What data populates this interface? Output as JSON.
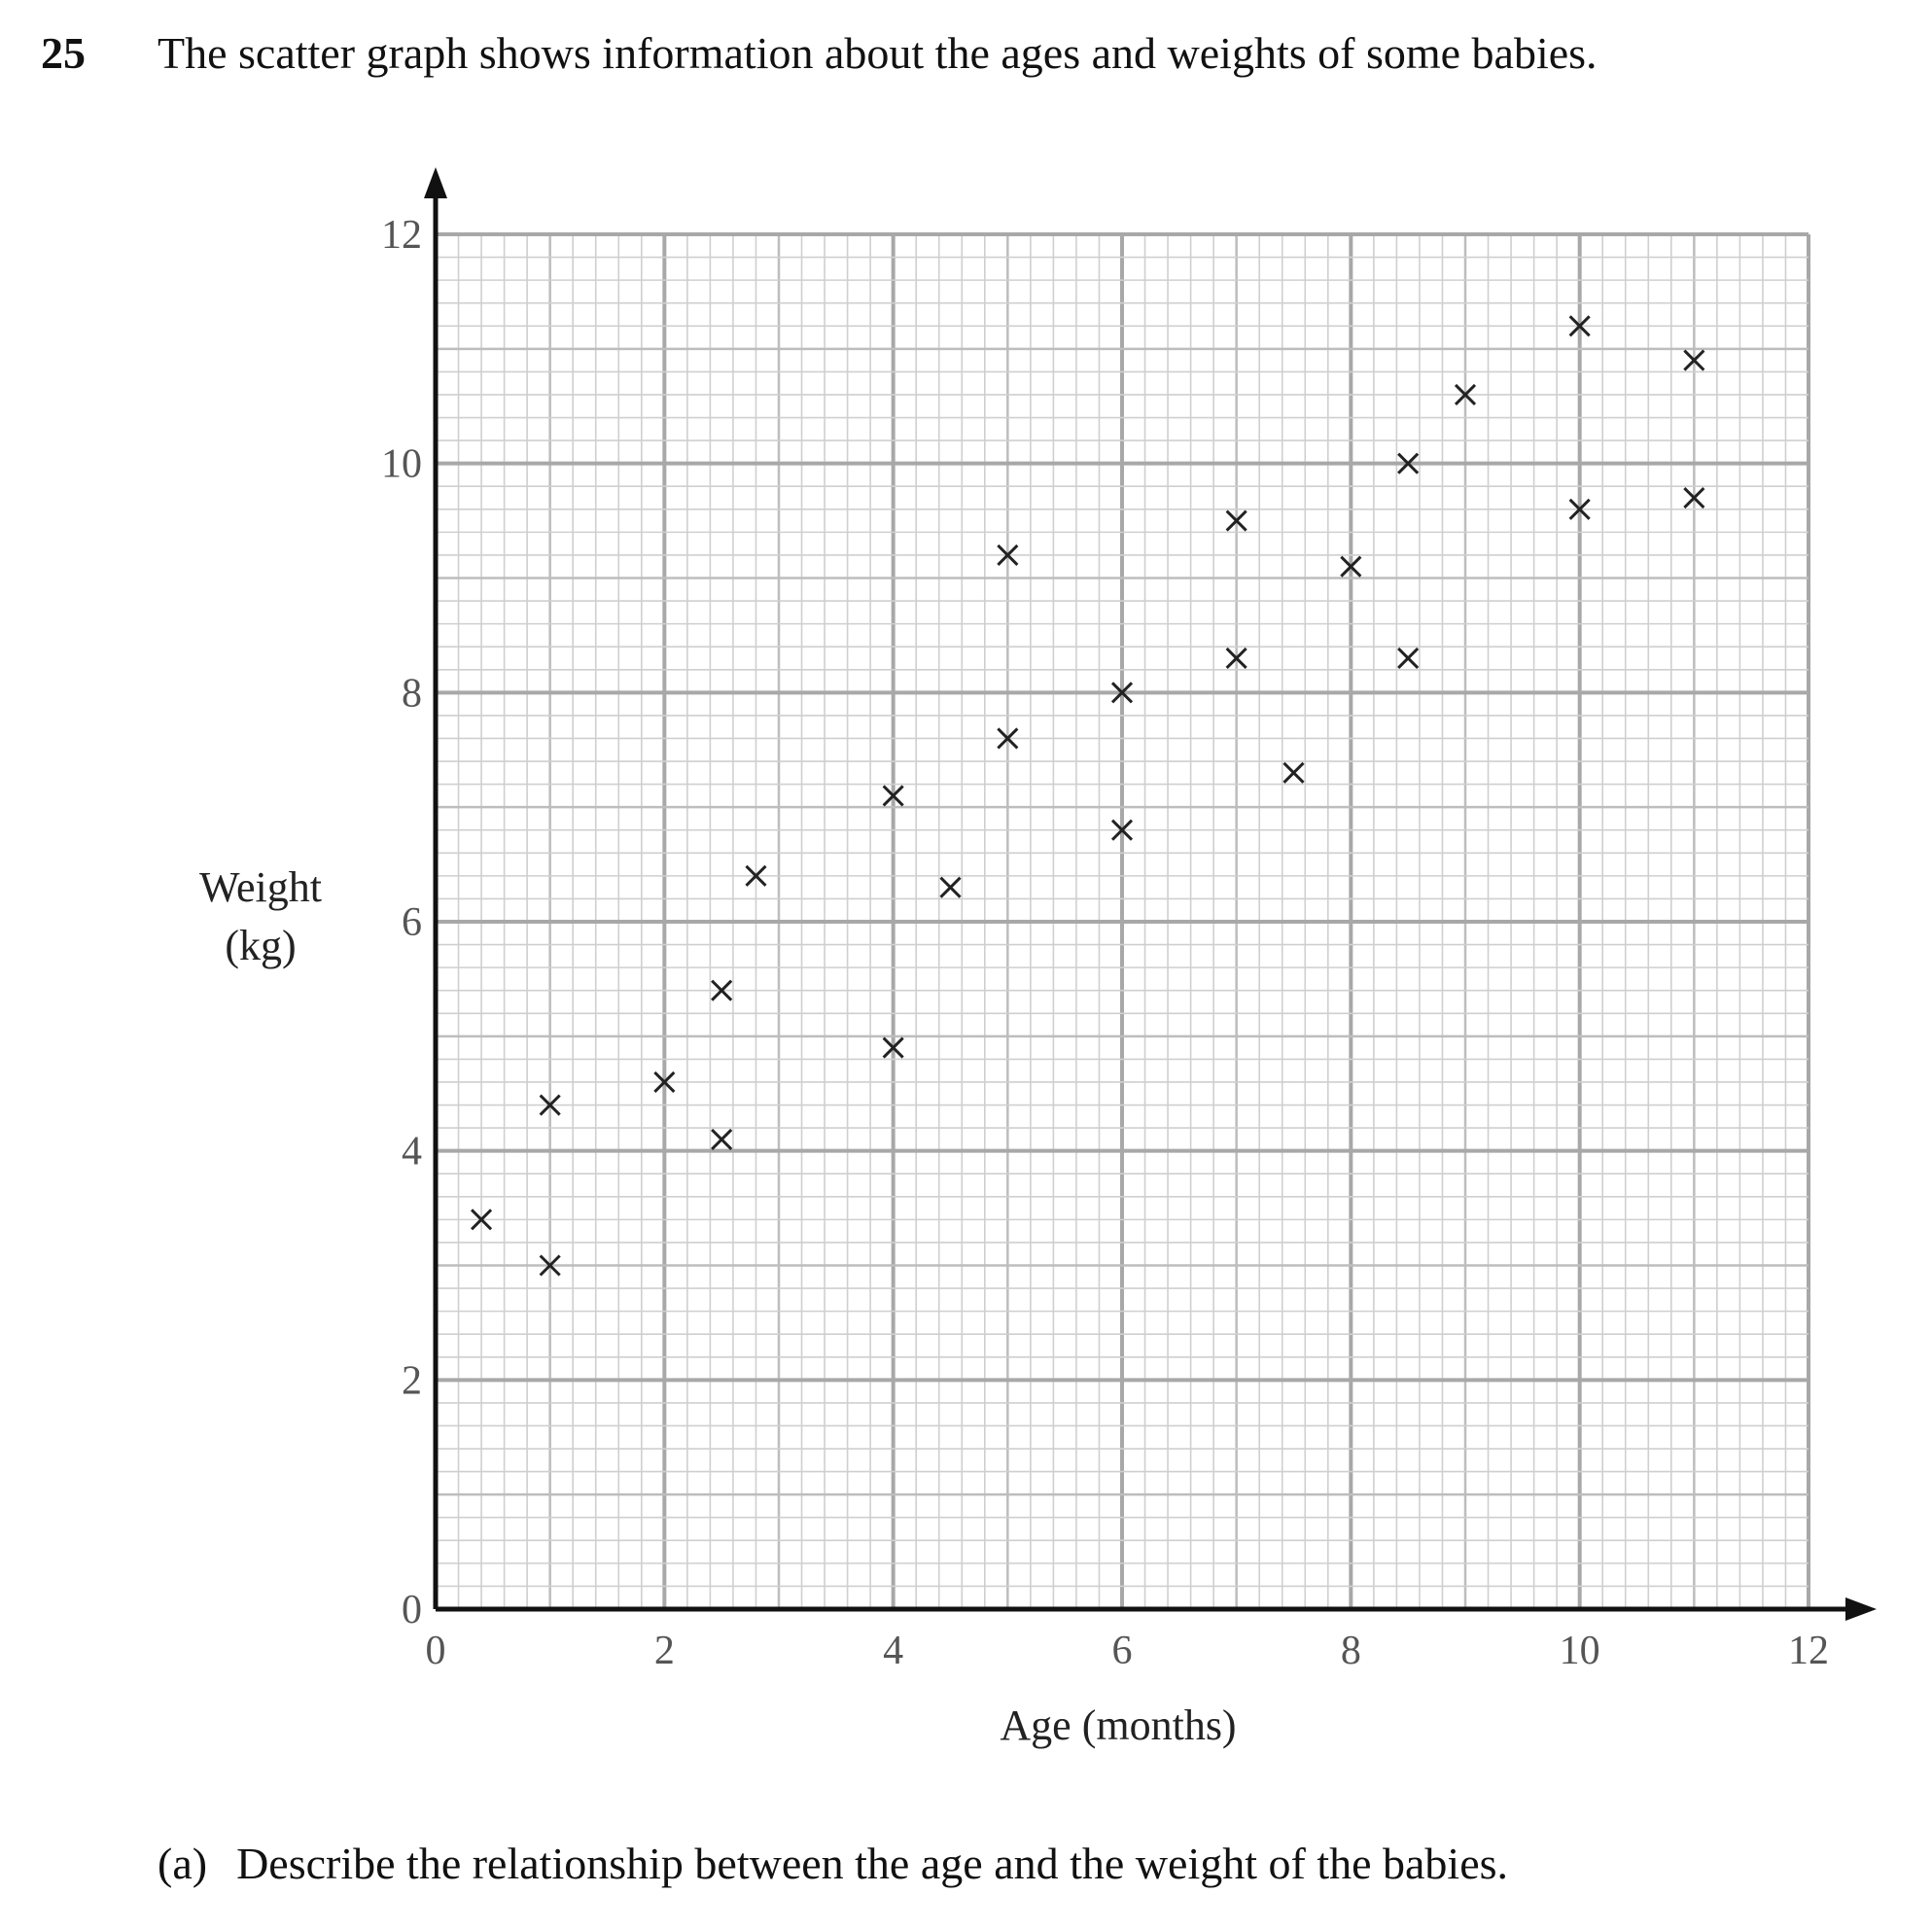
{
  "question": {
    "number": "25",
    "text": "The scatter graph shows information about the ages and weights of some babies."
  },
  "part_a": {
    "label": "(a)",
    "text": "Describe the relationship between the age and the weight of the babies."
  },
  "chart_data": {
    "type": "scatter",
    "xlabel": "Age (months)",
    "ylabel_lines": [
      "Weight",
      "(kg)"
    ],
    "xlim": [
      0,
      12
    ],
    "ylim": [
      0,
      12
    ],
    "xticks": [
      0,
      2,
      4,
      6,
      8,
      10,
      12
    ],
    "yticks": [
      0,
      2,
      4,
      6,
      8,
      10,
      12
    ],
    "grid": true,
    "marker": "x",
    "points": [
      {
        "x": 0.4,
        "y": 3.4
      },
      {
        "x": 1.0,
        "y": 3.0
      },
      {
        "x": 1.0,
        "y": 4.4
      },
      {
        "x": 2.0,
        "y": 4.6
      },
      {
        "x": 2.5,
        "y": 4.1
      },
      {
        "x": 2.5,
        "y": 5.4
      },
      {
        "x": 2.8,
        "y": 6.4
      },
      {
        "x": 4.0,
        "y": 4.9
      },
      {
        "x": 4.0,
        "y": 7.1
      },
      {
        "x": 4.5,
        "y": 6.3
      },
      {
        "x": 5.0,
        "y": 7.6
      },
      {
        "x": 5.0,
        "y": 9.2
      },
      {
        "x": 6.0,
        "y": 6.8
      },
      {
        "x": 6.0,
        "y": 8.0
      },
      {
        "x": 7.0,
        "y": 8.3
      },
      {
        "x": 7.0,
        "y": 9.5
      },
      {
        "x": 7.5,
        "y": 7.3
      },
      {
        "x": 8.0,
        "y": 9.1
      },
      {
        "x": 8.5,
        "y": 8.3
      },
      {
        "x": 8.5,
        "y": 10.0
      },
      {
        "x": 9.0,
        "y": 10.6
      },
      {
        "x": 10.0,
        "y": 9.6
      },
      {
        "x": 10.0,
        "y": 11.2
      },
      {
        "x": 11.0,
        "y": 9.7
      },
      {
        "x": 11.0,
        "y": 10.9
      }
    ]
  }
}
